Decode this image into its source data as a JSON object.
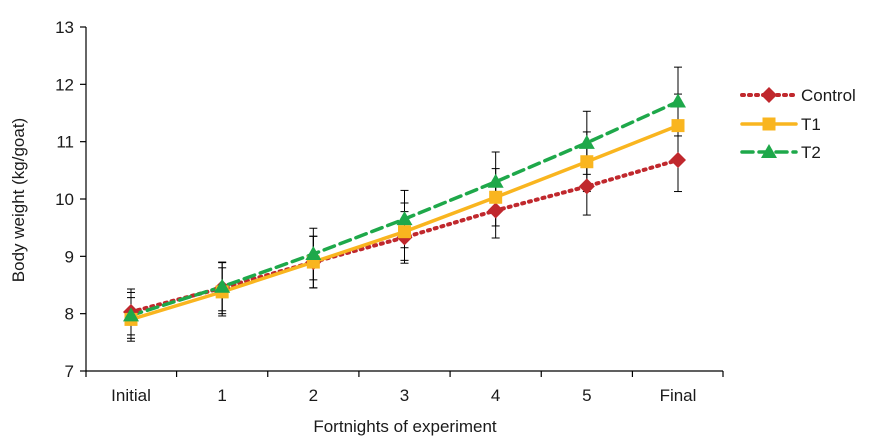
{
  "chart_data": {
    "type": "line",
    "title": "",
    "xlabel": "Fortnights of experiment",
    "ylabel": "Body weight (kg/goat)",
    "categories": [
      "Initial",
      "1",
      "2",
      "3",
      "4",
      "5",
      "Final"
    ],
    "ylim": [
      7,
      13
    ],
    "yticks": [
      7,
      8,
      9,
      10,
      11,
      12,
      13
    ],
    "grid": false,
    "legend_position": "right",
    "series": [
      {
        "name": "Control",
        "color": "#c0282d",
        "marker": "diamond",
        "line_style": "dotted",
        "values": [
          8.03,
          8.45,
          8.9,
          9.33,
          9.8,
          10.22,
          10.68
        ],
        "errors": [
          0.4,
          0.45,
          0.45,
          0.45,
          0.48,
          0.5,
          0.55
        ]
      },
      {
        "name": "T1",
        "color": "#f9b51f",
        "marker": "square",
        "line_style": "solid",
        "values": [
          7.9,
          8.38,
          8.9,
          9.43,
          10.03,
          10.65,
          11.28
        ],
        "errors": [
          0.38,
          0.42,
          0.45,
          0.5,
          0.5,
          0.52,
          0.55
        ]
      },
      {
        "name": "T2",
        "color": "#1ea84a",
        "marker": "triangle",
        "line_style": "dashed",
        "values": [
          7.97,
          8.47,
          9.04,
          9.65,
          10.3,
          10.98,
          11.7
        ],
        "errors": [
          0.4,
          0.42,
          0.45,
          0.5,
          0.52,
          0.55,
          0.6
        ]
      }
    ]
  }
}
